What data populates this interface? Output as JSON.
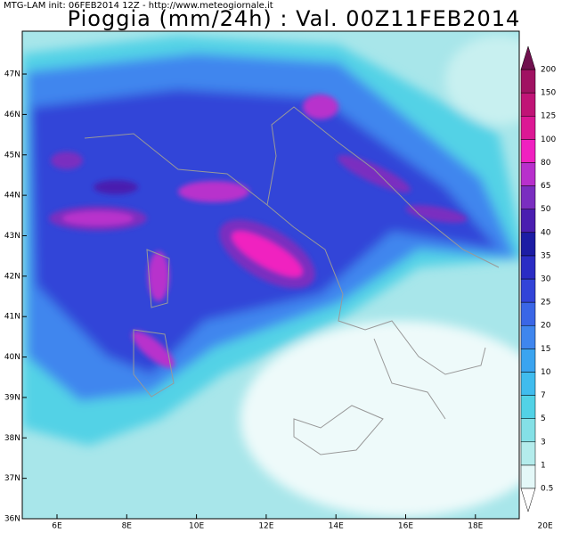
{
  "header": "MTG-LAM init: 06FEB2014 12Z - http://www.meteogiornale.it",
  "title": "Pioggia (mm/24h) : Val. 00Z11FEB2014",
  "latitudes": [
    "36N",
    "37N",
    "38N",
    "39N",
    "40N",
    "41N",
    "42N",
    "43N",
    "44N",
    "45N",
    "46N",
    "47N"
  ],
  "longitudes": [
    "6E",
    "8E",
    "10E",
    "12E",
    "14E",
    "16E",
    "18E",
    "20E"
  ],
  "legend": {
    "levels": [
      "0.5",
      "1",
      "3",
      "5",
      "7",
      "10",
      "15",
      "20",
      "25",
      "30",
      "35",
      "40",
      "50",
      "65",
      "80",
      "100",
      "125",
      "150",
      "200"
    ],
    "colors": [
      "#e4f8f8",
      "#b4ecec",
      "#84e0e6",
      "#52d2e6",
      "#40bcee",
      "#3aa4f0",
      "#3f86ee",
      "#3a66e6",
      "#3244d8",
      "#2a2cc4",
      "#1c1ca4",
      "#4a1eb0",
      "#7a2ec0",
      "#b830cc",
      "#f020c0",
      "#dc1894",
      "#c01476",
      "#a01262"
    ],
    "under_color": "#ffffff",
    "over_color": "#70104e"
  }
}
